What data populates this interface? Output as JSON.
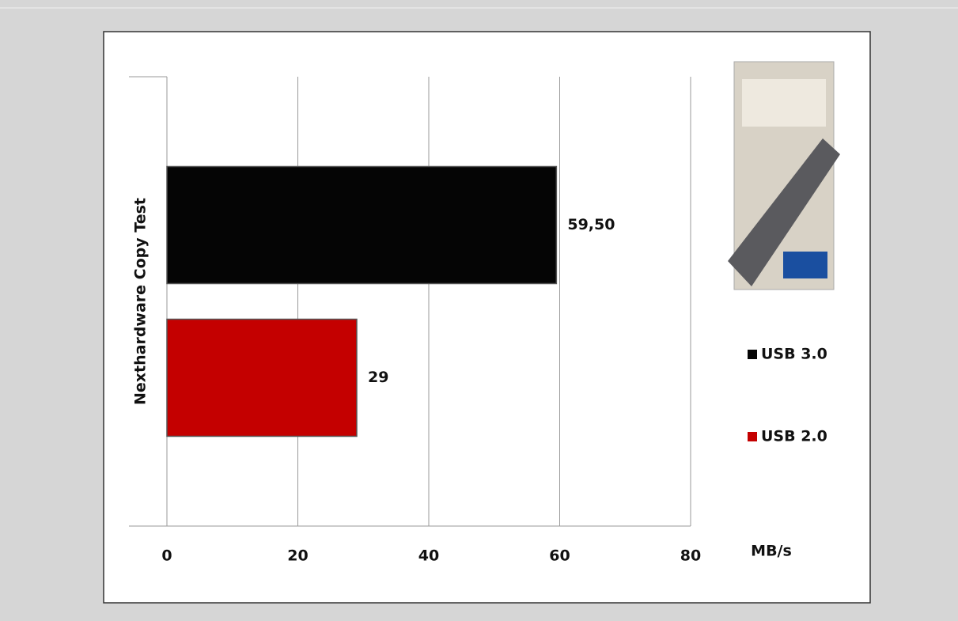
{
  "chart_data": {
    "type": "bar",
    "orientation": "horizontal",
    "categories": [
      "Nexthardware Copy Test"
    ],
    "series": [
      {
        "name": "USB 3.0",
        "color": "#050505",
        "values": [
          59.5
        ],
        "value_labels": [
          "59,50"
        ]
      },
      {
        "name": "USB 2.0",
        "color": "#c40000",
        "values": [
          29
        ],
        "value_labels": [
          "29"
        ]
      }
    ],
    "xlim": [
      0,
      80
    ],
    "xticks": [
      0,
      20,
      40,
      60,
      80
    ],
    "x_label": "MB/s",
    "grid": true,
    "legend": "right"
  }
}
